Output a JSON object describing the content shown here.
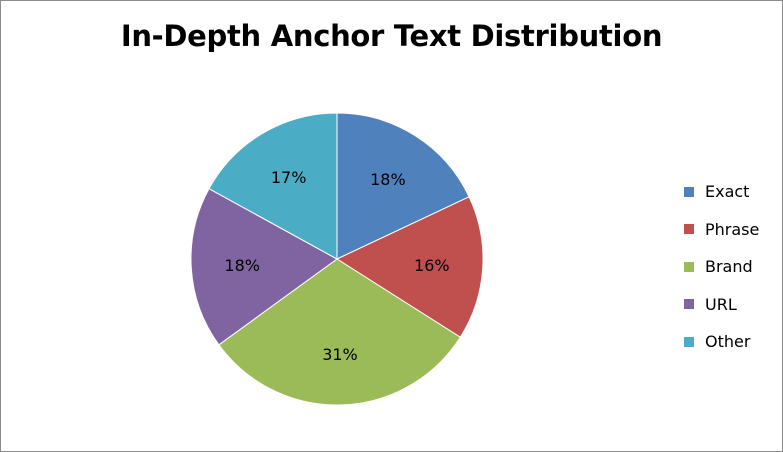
{
  "chart_data": {
    "type": "pie",
    "title": "In-Depth Anchor Text Distribution",
    "categories": [
      "Exact",
      "Phrase",
      "Brand",
      "URL",
      "Other"
    ],
    "values": [
      18,
      16,
      31,
      18,
      17
    ],
    "labels": [
      "18%",
      "16%",
      "31%",
      "18%",
      "17%"
    ],
    "colors": [
      "#4f81bd",
      "#c0504d",
      "#9bbb59",
      "#8064a2",
      "#4bacc6"
    ],
    "legend": "right",
    "start": "12 o'clock",
    "direction": "clockwise"
  }
}
